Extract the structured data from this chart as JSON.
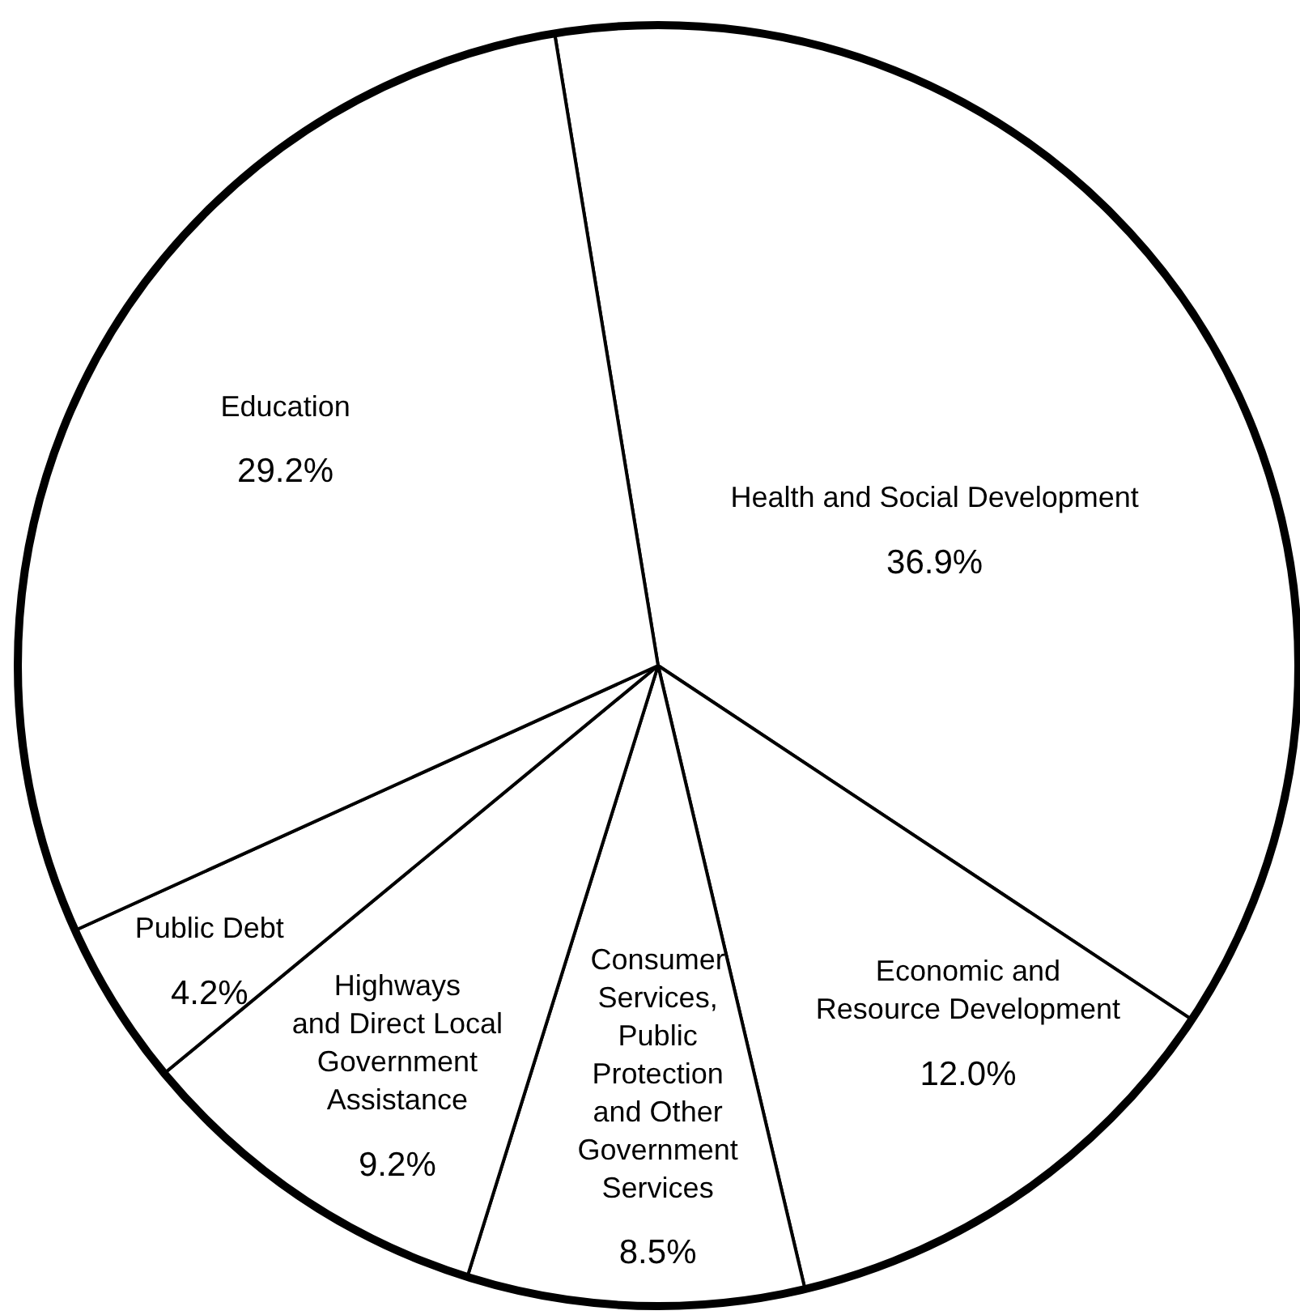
{
  "chart_data": {
    "type": "pie",
    "categories": [
      "Health and Social Development",
      "Economic and\nResource Development",
      "Consumer\nServices,\nPublic\nProtection\nand Other\nGovernment\nServices",
      "Highways\nand Direct Local\nGovernment\nAssistance",
      "Public Debt",
      "Education"
    ],
    "values": [
      36.9,
      12.0,
      8.5,
      9.2,
      4.2,
      29.2
    ],
    "colors": [
      "#ffffff",
      "#ffffff",
      "#ffffff",
      "#ffffff",
      "#ffffff",
      "#ffffff"
    ],
    "value_labels": [
      "36.9%",
      "12.0%",
      "8.5%",
      "9.2%",
      "4.2%",
      "29.2%"
    ]
  }
}
